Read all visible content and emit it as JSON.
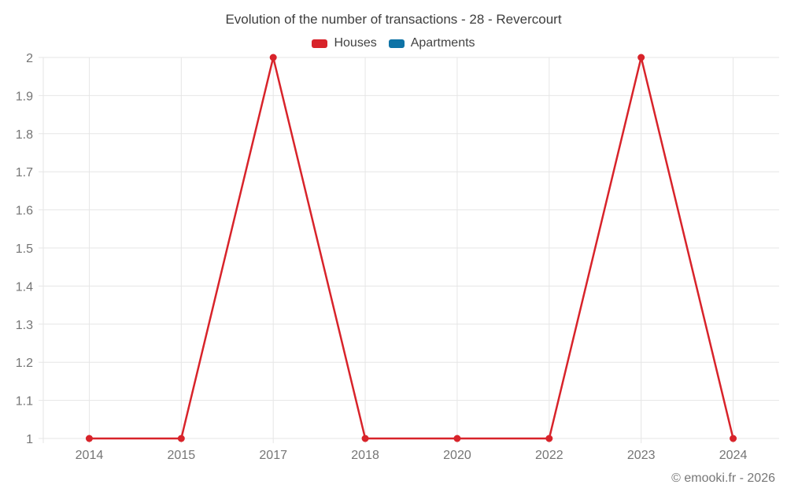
{
  "chart": {
    "title": "Evolution of the number of transactions - 28 - Revercourt",
    "footer": "© emooki.fr - 2026"
  },
  "chart_data": {
    "type": "line",
    "title": "Evolution of the number of transactions - 28 - Revercourt",
    "categories": [
      "2014",
      "2015",
      "2017",
      "2018",
      "2020",
      "2022",
      "2023",
      "2024"
    ],
    "series": [
      {
        "name": "Houses",
        "color": "#d8232a",
        "values": [
          1,
          1,
          2,
          1,
          1,
          1,
          2,
          1
        ]
      },
      {
        "name": "Apartments",
        "color": "#0e73a6",
        "values": []
      }
    ],
    "xlabel": "",
    "ylabel": "",
    "ylim": [
      1,
      2
    ],
    "ytick_step": 0.1,
    "ytick_labels": [
      "1",
      "1.1",
      "1.2",
      "1.3",
      "1.4",
      "1.5",
      "1.6",
      "1.7",
      "1.8",
      "1.9",
      "2"
    ],
    "grid": true,
    "legend_position": "top",
    "grid_color": "#e6e6e6",
    "tick_label_color": "#757575"
  }
}
